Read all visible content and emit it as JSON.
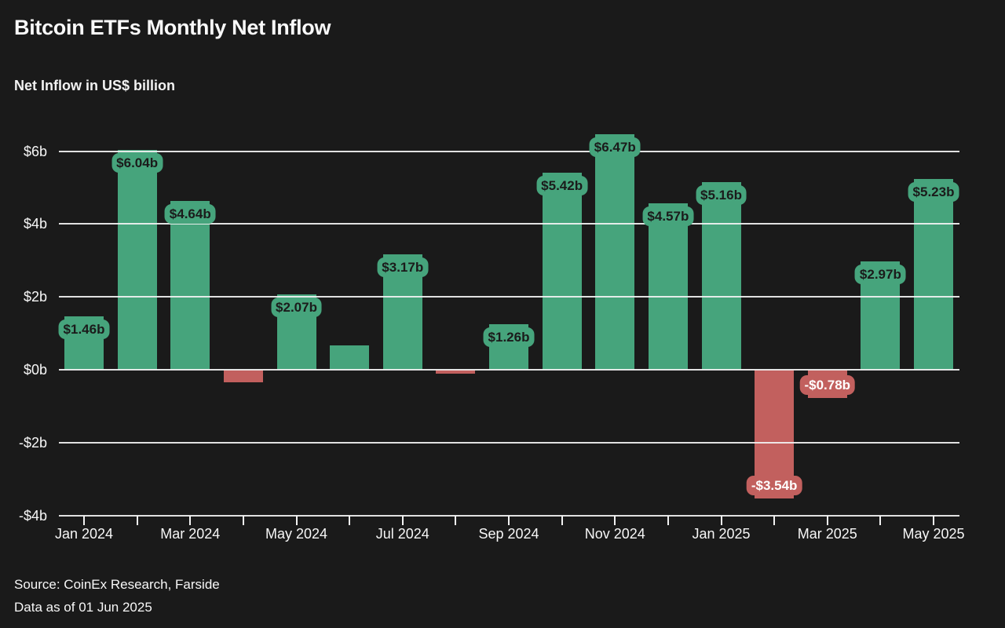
{
  "header": {
    "title": "Bitcoin ETFs Monthly Net Inflow",
    "subtitle": "Net Inflow in US$ billion"
  },
  "chart_data": {
    "type": "bar",
    "title": "Bitcoin ETFs Monthly Net Inflow",
    "ylabel": "Net Inflow in US$ billion",
    "categories": [
      "Jan 2024",
      "Feb 2024",
      "Mar 2024",
      "Apr 2024",
      "May 2024",
      "Jun 2024",
      "Jul 2024",
      "Aug 2024",
      "Sep 2024",
      "Oct 2024",
      "Nov 2024",
      "Dec 2024",
      "Jan 2025",
      "Feb 2025",
      "Mar 2025",
      "Apr 2025",
      "May 2025"
    ],
    "values": [
      1.46,
      6.04,
      4.64,
      -0.35,
      2.07,
      0.67,
      3.17,
      -0.1,
      1.26,
      5.42,
      6.47,
      4.57,
      5.16,
      -3.54,
      -0.78,
      2.97,
      5.23
    ],
    "bar_labels": [
      "$1.46b",
      "$6.04b",
      "$4.64b",
      "",
      "$2.07b",
      "",
      "$3.17b",
      "",
      "$1.26b",
      "$5.42b",
      "$6.47b",
      "$4.57b",
      "$5.16b",
      "-$3.54b",
      "-$0.78b",
      "$2.97b",
      "$5.23b"
    ],
    "x_tick_labels": [
      "Jan 2024",
      "Mar 2024",
      "May 2024",
      "Jul 2024",
      "Sep 2024",
      "Nov 2024",
      "Jan 2025",
      "Mar 2025",
      "May 2025"
    ],
    "y_ticks": [
      {
        "value": 6,
        "label": "$6b"
      },
      {
        "value": 4,
        "label": "$4b"
      },
      {
        "value": 2,
        "label": "$2b"
      },
      {
        "value": 0,
        "label": "$0b"
      },
      {
        "value": -2,
        "label": "-$2b"
      },
      {
        "value": -4,
        "label": "-$4b"
      }
    ],
    "ylim": [
      -4,
      6.7
    ],
    "grid": true,
    "legend_position": "none",
    "colors": {
      "positive": "#46a47c",
      "negative": "#c2605e",
      "background": "#1a1a1a",
      "gridline": "#f2f2f2",
      "axis": "#f2f2f2",
      "text": "#f7f7f7",
      "label_text_positive": "#1b1b1b",
      "label_text_negative": "#ffffff"
    }
  },
  "footer": {
    "source": "Source: CoinEx Research, Farside",
    "as_of": "Data as of 01 Jun 2025"
  }
}
